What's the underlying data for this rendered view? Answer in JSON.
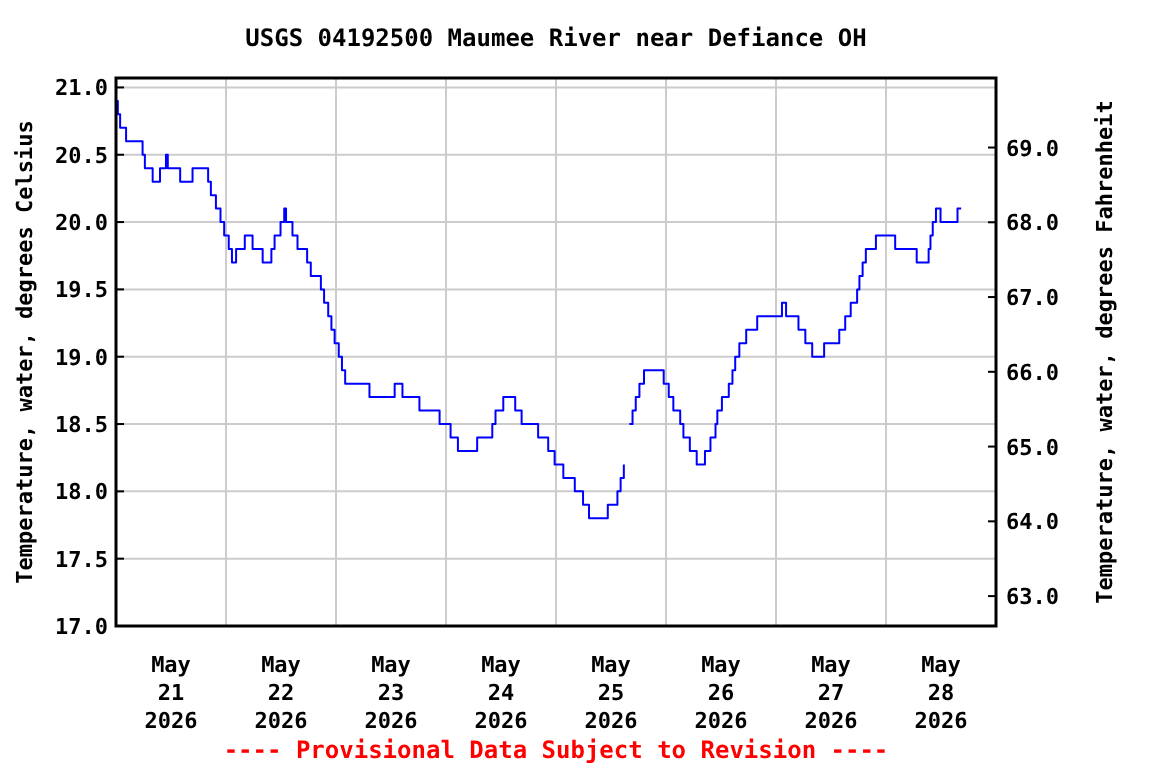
{
  "chart_data": {
    "type": "step",
    "title": "USGS 04192500 Maumee River near Defiance OH",
    "ylabel": "Temperature, water, degrees Celsius",
    "y2label": "Temperature, water, degrees Fahrenheit",
    "annotations": [
      "---- Provisional Data Subject to Revision ----"
    ],
    "x": [
      "2026-05-21T00:00",
      "2026-05-21T00:24",
      "2026-05-21T00:54",
      "2026-05-21T02:12",
      "2026-05-21T05:48",
      "2026-05-21T06:18",
      "2026-05-21T08:00",
      "2026-05-21T09:36",
      "2026-05-21T10:54",
      "2026-05-21T11:18",
      "2026-05-21T14:00",
      "2026-05-21T16:42",
      "2026-05-21T20:06",
      "2026-05-21T20:42",
      "2026-05-21T21:48",
      "2026-05-21T22:48",
      "2026-05-21T23:36",
      "2026-05-22T00:36",
      "2026-05-22T01:18",
      "2026-05-22T02:12",
      "2026-05-22T04:06",
      "2026-05-22T05:48",
      "2026-05-22T08:00",
      "2026-05-22T09:54",
      "2026-05-22T10:36",
      "2026-05-22T11:54",
      "2026-05-22T12:42",
      "2026-05-22T13:06",
      "2026-05-22T14:30",
      "2026-05-22T15:36",
      "2026-05-22T17:42",
      "2026-05-22T18:30",
      "2026-05-22T20:42",
      "2026-05-22T21:24",
      "2026-05-22T22:18",
      "2026-05-22T23:00",
      "2026-05-22T23:42",
      "2026-05-23T00:36",
      "2026-05-23T01:18",
      "2026-05-23T02:00",
      "2026-05-23T07:18",
      "2026-05-23T12:48",
      "2026-05-23T14:30",
      "2026-05-23T18:12",
      "2026-05-23T22:36",
      "2026-05-24T01:00",
      "2026-05-24T02:36",
      "2026-05-24T06:48",
      "2026-05-24T10:06",
      "2026-05-24T10:48",
      "2026-05-24T12:30",
      "2026-05-24T15:06",
      "2026-05-24T16:30",
      "2026-05-24T20:06",
      "2026-05-24T22:18",
      "2026-05-24T23:42",
      "2026-05-25T01:36",
      "2026-05-25T04:06",
      "2026-05-25T05:54",
      "2026-05-25T07:12",
      "2026-05-25T11:18",
      "2026-05-25T13:24",
      "2026-05-25T14:06",
      "2026-05-25T14:48",
      "2026-05-25T15:24",
      "2026-05-25T16:00",
      "2026-05-25T16:42",
      "2026-05-25T17:24",
      "2026-05-25T18:12",
      "2026-05-25T19:12",
      "2026-05-25T23:30",
      "2026-05-26T00:36",
      "2026-05-26T01:36",
      "2026-05-26T03:06",
      "2026-05-26T03:48",
      "2026-05-26T05:12",
      "2026-05-26T06:42",
      "2026-05-26T08:30",
      "2026-05-26T09:42",
      "2026-05-26T10:48",
      "2026-05-26T11:12",
      "2026-05-26T12:12",
      "2026-05-26T13:42",
      "2026-05-26T14:30",
      "2026-05-26T15:06",
      "2026-05-26T16:00",
      "2026-05-26T17:30",
      "2026-05-26T19:54",
      "2026-05-27T01:18",
      "2026-05-27T02:12",
      "2026-05-27T04:54",
      "2026-05-27T06:24",
      "2026-05-27T07:54",
      "2026-05-27T10:30",
      "2026-05-27T13:48",
      "2026-05-27T15:06",
      "2026-05-27T16:18",
      "2026-05-27T17:42",
      "2026-05-27T18:12",
      "2026-05-27T18:54",
      "2026-05-27T19:36",
      "2026-05-27T21:48",
      "2026-05-28T02:00",
      "2026-05-28T06:42",
      "2026-05-28T09:18",
      "2026-05-28T09:42",
      "2026-05-28T10:12",
      "2026-05-28T10:54",
      "2026-05-28T11:54",
      "2026-05-28T15:36",
      "2026-05-28T16:24"
    ],
    "series": [
      {
        "color": "#0000ff",
        "values": [
          20.9,
          20.8,
          20.7,
          20.6,
          20.5,
          20.4,
          20.3,
          20.4,
          20.5,
          20.4,
          20.3,
          20.4,
          20.3,
          20.2,
          20.1,
          20.0,
          19.9,
          19.8,
          19.7,
          19.8,
          19.9,
          19.8,
          19.7,
          19.8,
          19.9,
          20.0,
          20.1,
          20.0,
          19.9,
          19.8,
          19.7,
          19.6,
          19.5,
          19.4,
          19.3,
          19.2,
          19.1,
          19.0,
          18.9,
          18.8,
          18.7,
          18.8,
          18.7,
          18.6,
          18.5,
          18.4,
          18.3,
          18.4,
          18.5,
          18.6,
          18.7,
          18.6,
          18.5,
          18.4,
          18.3,
          18.2,
          18.1,
          18.0,
          17.9,
          17.8,
          17.9,
          18.0,
          18.1,
          18.2,
          null,
          18.5,
          18.6,
          18.7,
          18.8,
          18.9,
          18.8,
          18.7,
          18.6,
          18.5,
          18.4,
          18.3,
          18.2,
          18.3,
          18.4,
          18.5,
          18.6,
          18.7,
          18.8,
          18.9,
          19.0,
          19.1,
          19.2,
          19.3,
          19.4,
          19.3,
          19.2,
          19.1,
          19.0,
          19.1,
          19.2,
          19.3,
          19.4,
          19.5,
          19.6,
          19.7,
          19.8,
          19.9,
          19.8,
          19.7,
          19.8,
          19.9,
          20.0,
          20.1,
          20.0,
          20.1,
          20.1
        ]
      }
    ],
    "xlim": [
      "2026-05-21T00:00",
      "2026-05-29T00:00"
    ],
    "xticks": [
      {
        "value": "2026-05-21T12:00",
        "label": "May 21 2026"
      },
      {
        "value": "2026-05-22T00:00",
        "label": null
      },
      {
        "value": "2026-05-22T12:00",
        "label": "May 22 2026"
      },
      {
        "value": "2026-05-23T00:00",
        "label": null
      },
      {
        "value": "2026-05-23T12:00",
        "label": "May 23 2026"
      },
      {
        "value": "2026-05-24T00:00",
        "label": null
      },
      {
        "value": "2026-05-24T12:00",
        "label": "May 24 2026"
      },
      {
        "value": "2026-05-25T00:00",
        "label": null
      },
      {
        "value": "2026-05-25T12:00",
        "label": "May 25 2026"
      },
      {
        "value": "2026-05-26T00:00",
        "label": null
      },
      {
        "value": "2026-05-26T12:00",
        "label": "May 26 2026"
      },
      {
        "value": "2026-05-27T00:00",
        "label": null
      },
      {
        "value": "2026-05-27T12:00",
        "label": "May 27 2026"
      },
      {
        "value": "2026-05-28T00:00",
        "label": null
      },
      {
        "value": "2026-05-28T12:00",
        "label": "May 28 2026"
      }
    ],
    "ylim": [
      17,
      21.07
    ],
    "yticks": [
      {
        "value": 17,
        "label": "17.0"
      },
      {
        "value": 17.5,
        "label": "17.5"
      },
      {
        "value": 18,
        "label": "18.0"
      },
      {
        "value": 18.5,
        "label": "18.5"
      },
      {
        "value": 19,
        "label": "19.0"
      },
      {
        "value": 19.5,
        "label": "19.5"
      },
      {
        "value": 20,
        "label": "20.0"
      },
      {
        "value": 20.5,
        "label": "20.5"
      },
      {
        "value": 21,
        "label": "21.0"
      }
    ],
    "y2lim": [
      62.6,
      69.93
    ],
    "y2ticks": [
      {
        "value": 63,
        "label": "63.0"
      },
      {
        "value": 64,
        "label": "64.0"
      },
      {
        "value": 65,
        "label": "65.0"
      },
      {
        "value": 66,
        "label": "66.0"
      },
      {
        "value": 67,
        "label": "67.0"
      },
      {
        "value": 68,
        "label": "68.0"
      },
      {
        "value": 69,
        "label": "69.0"
      }
    ],
    "grid": true,
    "line_style": "solid",
    "marker": "none"
  }
}
